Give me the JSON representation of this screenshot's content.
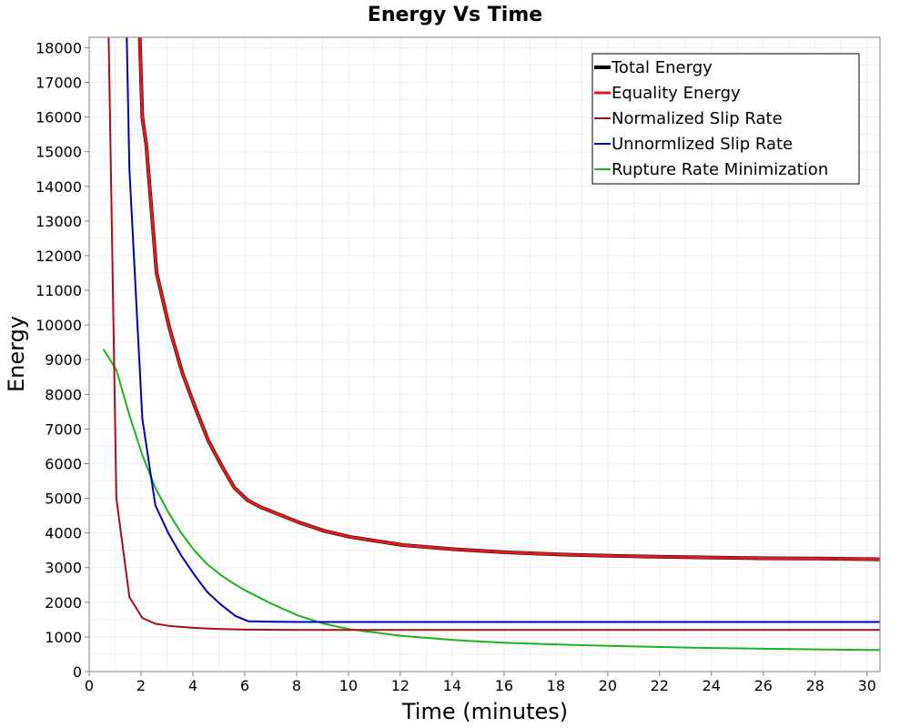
{
  "chart_data": {
    "type": "line",
    "title": "Energy Vs Time",
    "xlabel": "Time (minutes)",
    "ylabel": "Energy",
    "xlim": [
      0,
      30.5
    ],
    "ylim": [
      0,
      18300
    ],
    "xticks": [
      0,
      2,
      4,
      6,
      8,
      10,
      12,
      14,
      16,
      18,
      20,
      22,
      24,
      26,
      28,
      30
    ],
    "yticks": [
      0,
      1000,
      2000,
      3000,
      4000,
      5000,
      6000,
      7000,
      8000,
      9000,
      10000,
      11000,
      12000,
      13000,
      14000,
      15000,
      16000,
      17000,
      18000
    ],
    "grid": true,
    "legend_position": "top-right",
    "series": [
      {
        "name": "Total Energy",
        "color": "#000000",
        "width": 4,
        "x": [
          1.95,
          2.05,
          2.2,
          2.6,
          3.1,
          3.6,
          4.1,
          4.6,
          5.1,
          5.6,
          6.1,
          6.6,
          7.1,
          8.1,
          9.1,
          10.1,
          12.1,
          14.1,
          16.1,
          18.1,
          20.1,
          22.1,
          24.1,
          26.1,
          28.1,
          30.5
        ],
        "y": [
          18300,
          16000,
          15200,
          11500,
          9900,
          8600,
          7600,
          6650,
          5950,
          5300,
          4950,
          4750,
          4600,
          4300,
          4050,
          3880,
          3650,
          3530,
          3440,
          3380,
          3340,
          3310,
          3290,
          3270,
          3260,
          3240
        ]
      },
      {
        "name": "Equality Energy",
        "color": "#e31a1c",
        "width": 3,
        "x": [
          1.95,
          2.05,
          2.2,
          2.6,
          3.1,
          3.6,
          4.1,
          4.6,
          5.1,
          5.6,
          6.1,
          6.6,
          7.1,
          8.1,
          9.1,
          10.1,
          12.1,
          14.1,
          16.1,
          18.1,
          20.1,
          22.1,
          24.1,
          26.1,
          28.1,
          30.5
        ],
        "y": [
          18300,
          16000,
          15200,
          11500,
          9900,
          8600,
          7600,
          6650,
          5950,
          5300,
          4950,
          4750,
          4600,
          4300,
          4050,
          3880,
          3650,
          3530,
          3440,
          3380,
          3340,
          3310,
          3290,
          3270,
          3260,
          3240
        ]
      },
      {
        "name": "Normalized Slip Rate",
        "color": "#a50f15",
        "width": 2,
        "x": [
          0.75,
          1.05,
          1.55,
          2.05,
          2.55,
          3.05,
          4.05,
          5.05,
          6.05,
          8.05,
          10.05,
          15,
          20,
          25,
          30.5
        ],
        "y": [
          18300,
          5000,
          2150,
          1550,
          1380,
          1320,
          1260,
          1230,
          1210,
          1200,
          1200,
          1200,
          1200,
          1200,
          1200
        ]
      },
      {
        "name": "Unnormlized Slip Rate",
        "color": "#0000b4",
        "width": 2,
        "x": [
          1.45,
          1.55,
          2.05,
          2.55,
          3.05,
          3.55,
          4.05,
          4.55,
          5.05,
          5.65,
          6.15,
          7.15,
          8.15,
          10,
          15,
          20,
          25,
          30.5
        ],
        "y": [
          18300,
          14500,
          7300,
          4800,
          4000,
          3350,
          2800,
          2300,
          1950,
          1600,
          1450,
          1440,
          1430,
          1430,
          1430,
          1430,
          1430,
          1430
        ]
      },
      {
        "name": "Rupture Rate Minimization",
        "color": "#1db31d",
        "width": 2,
        "x": [
          0.55,
          1.05,
          1.55,
          2.05,
          2.55,
          3.05,
          3.55,
          4.05,
          4.55,
          5.05,
          5.55,
          6.05,
          7.05,
          8.05,
          9.05,
          10.05,
          12.05,
          14.05,
          16.05,
          18.05,
          20.05,
          22.05,
          24.05,
          26.05,
          28.05,
          30.5
        ],
        "y": [
          9300,
          8700,
          7400,
          6250,
          5300,
          4600,
          4000,
          3500,
          3100,
          2800,
          2550,
          2330,
          1950,
          1620,
          1380,
          1220,
          1030,
          910,
          830,
          780,
          740,
          710,
          680,
          660,
          640,
          620
        ]
      }
    ]
  }
}
